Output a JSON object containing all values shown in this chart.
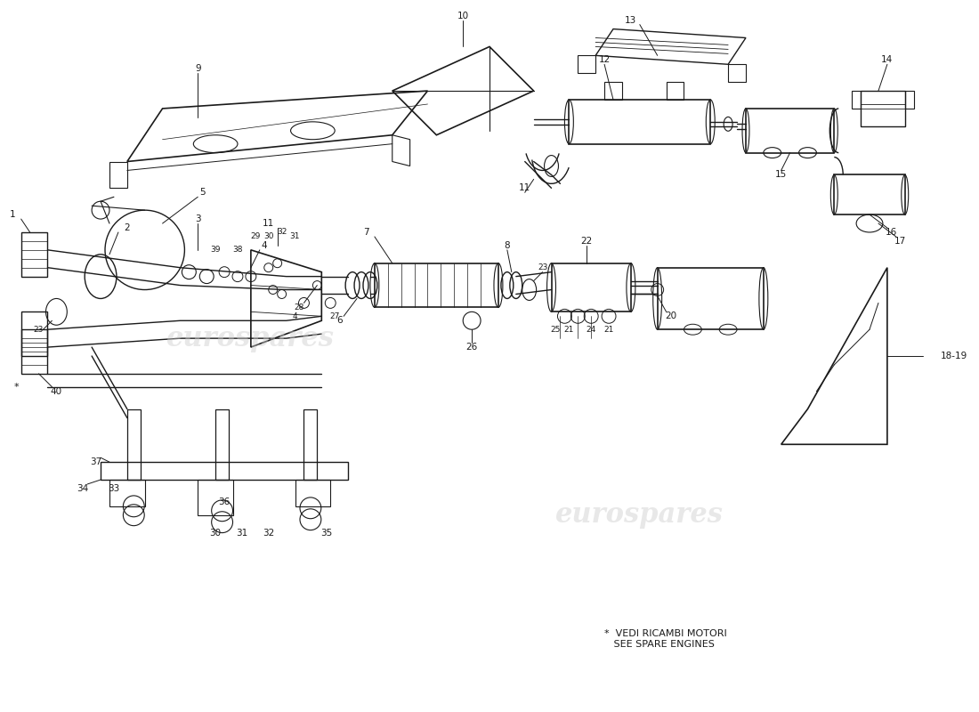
{
  "bg_color": "#f5f0e8",
  "line_color": "#1a1a1a",
  "watermark_color": "#cccccc",
  "watermark_alpha": 0.4,
  "footnote": "*  VEDI RICAMBI MOTORI\n   SEE SPARE ENGINES",
  "fig_width": 11.0,
  "fig_height": 8.0,
  "dpi": 100
}
